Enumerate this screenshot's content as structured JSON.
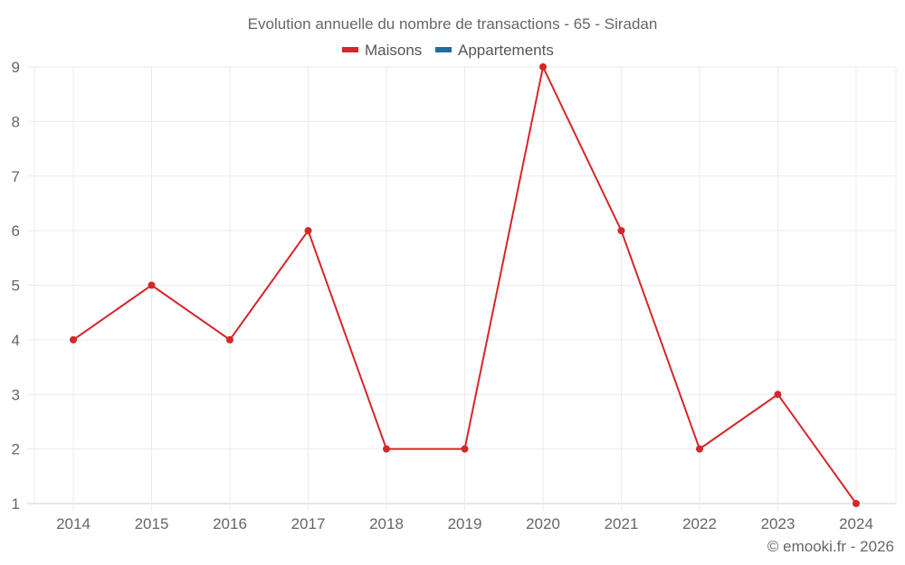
{
  "chart_data": {
    "type": "line",
    "title": "Evolution annuelle du nombre de transactions - 65 - Siradan",
    "xlabel": "",
    "ylabel": "",
    "categories": [
      "2014",
      "2015",
      "2016",
      "2017",
      "2018",
      "2019",
      "2020",
      "2021",
      "2022",
      "2023",
      "2024"
    ],
    "series": [
      {
        "name": "Maisons",
        "color": "#d62728",
        "values": [
          4,
          5,
          4,
          6,
          2,
          2,
          9,
          6,
          2,
          3,
          1
        ]
      },
      {
        "name": "Appartements",
        "color": "#1f6fa5",
        "values": []
      }
    ],
    "ylim": [
      1,
      9
    ],
    "yticks": [
      1,
      2,
      3,
      4,
      5,
      6,
      7,
      8,
      9
    ],
    "grid": true,
    "legend_position": "top"
  },
  "credit": "© emooki.fr - 2026"
}
